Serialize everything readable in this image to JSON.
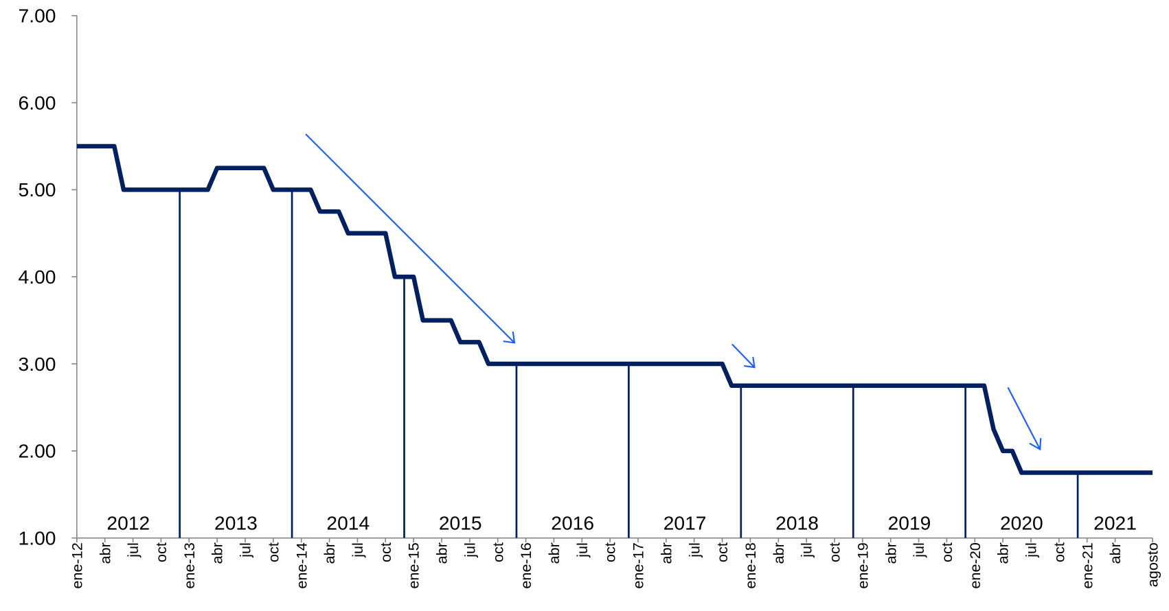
{
  "chart_data": {
    "type": "line",
    "categories": [
      "ene-12",
      null,
      null,
      "abr",
      null,
      null,
      "jul",
      null,
      null,
      "oct",
      null,
      null,
      "ene-13",
      null,
      null,
      "abr",
      null,
      null,
      "jul",
      null,
      null,
      "oct",
      null,
      null,
      "ene-14",
      null,
      null,
      "abr",
      null,
      null,
      "jul",
      null,
      null,
      "oct",
      null,
      null,
      "ene-15",
      null,
      null,
      "abr",
      null,
      null,
      "jul",
      null,
      null,
      "oct",
      null,
      null,
      "ene-16",
      null,
      null,
      "abr",
      null,
      null,
      "jul",
      null,
      null,
      "oct",
      null,
      null,
      "ene-17",
      null,
      null,
      "abr",
      null,
      null,
      "jul",
      null,
      null,
      "oct",
      null,
      null,
      "ene-18",
      null,
      null,
      "abr",
      null,
      null,
      "jul",
      null,
      null,
      "oct",
      null,
      null,
      "ene-19",
      null,
      null,
      "abr",
      null,
      null,
      "jul",
      null,
      null,
      "oct",
      null,
      null,
      "ene-20",
      null,
      null,
      "abr",
      null,
      null,
      "jul",
      null,
      null,
      "oct",
      null,
      null,
      "ene-21",
      null,
      null,
      "abr",
      null,
      null,
      null,
      "agosto"
    ],
    "values": [
      5.5,
      5.5,
      5.5,
      5.5,
      5.5,
      5,
      5,
      5,
      5,
      5,
      5,
      5,
      5,
      5,
      5,
      5.25,
      5.25,
      5.25,
      5.25,
      5.25,
      5.25,
      5,
      5,
      5,
      5,
      5,
      4.75,
      4.75,
      4.75,
      4.5,
      4.5,
      4.5,
      4.5,
      4.5,
      4,
      4,
      4,
      3.5,
      3.5,
      3.5,
      3.5,
      3.25,
      3.25,
      3.25,
      3,
      3,
      3,
      3,
      3,
      3,
      3,
      3,
      3,
      3,
      3,
      3,
      3,
      3,
      3,
      3,
      3,
      3,
      3,
      3,
      3,
      3,
      3,
      3,
      3,
      3,
      2.75,
      2.75,
      2.75,
      2.75,
      2.75,
      2.75,
      2.75,
      2.75,
      2.75,
      2.75,
      2.75,
      2.75,
      2.75,
      2.75,
      2.75,
      2.75,
      2.75,
      2.75,
      2.75,
      2.75,
      2.75,
      2.75,
      2.75,
      2.75,
      2.75,
      2.75,
      2.75,
      2.75,
      2.25,
      2,
      2,
      1.75,
      1.75,
      1.75,
      1.75,
      1.75,
      1.75,
      1.75,
      1.75,
      1.75,
      1.75,
      1.75,
      1.75,
      1.75,
      1.75,
      1.75
    ],
    "color": "#002060",
    "ylim": [
      1,
      7
    ],
    "yticks": [
      {
        "value": 1,
        "label": "1.00"
      },
      {
        "value": 2,
        "label": "2.00"
      },
      {
        "value": 3,
        "label": "3.00"
      },
      {
        "value": 4,
        "label": "4.00"
      },
      {
        "value": 5,
        "label": "5.00"
      },
      {
        "value": 6,
        "label": "6.00"
      },
      {
        "value": 7,
        "label": "7.00"
      }
    ],
    "year_labels": [
      "2012",
      "2013",
      "2014",
      "2015",
      "2016",
      "2017",
      "2018",
      "2019",
      "2020",
      "2021"
    ]
  }
}
